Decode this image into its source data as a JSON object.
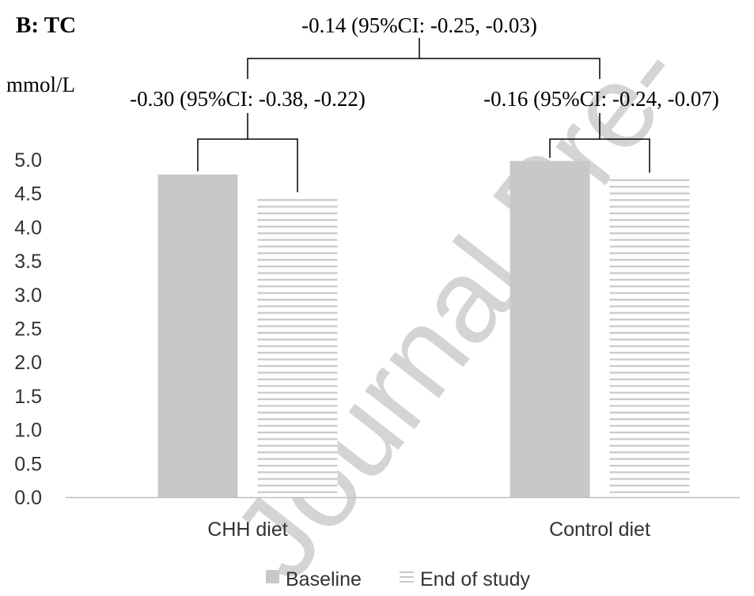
{
  "panel_label": "B: TC",
  "watermark": "Journal Pre-",
  "colors": {
    "baseline": "#c8c8c8",
    "end": "#c8c8c8",
    "axis": "#bfbfbf",
    "bracket": "#000000",
    "watermark": "#d4d4d4"
  },
  "chart_data": {
    "type": "bar",
    "ylabel": "mmol/L",
    "ylim": [
      0,
      5.0
    ],
    "ytick_step": 0.5,
    "categories": [
      "CHH diet",
      "Control diet"
    ],
    "series": [
      {
        "name": "Baseline",
        "values": [
          4.78,
          4.98
        ],
        "pattern": "solid"
      },
      {
        "name": "End of study",
        "values": [
          4.47,
          4.76
        ],
        "pattern": "horizontal-stripes"
      }
    ],
    "annotations": {
      "within": [
        "-0.30 (95%CI: -0.38, -0.22)",
        "-0.16 (95%CI: -0.24, -0.07)"
      ],
      "between": "-0.14 (95%CI: -0.25, -0.03)"
    },
    "legend_position": "bottom",
    "grid": false
  }
}
